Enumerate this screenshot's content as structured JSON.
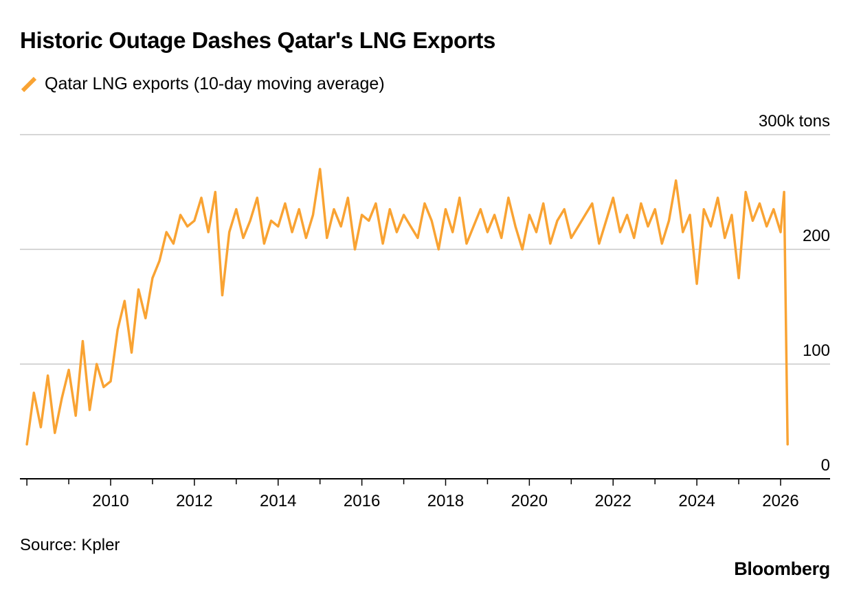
{
  "header": {
    "title": "Historic Outage Dashes Qatar's LNG Exports"
  },
  "footer": {
    "source": "Source: Kpler",
    "brand": "Bloomberg"
  },
  "colors": {
    "series": "#F9A333",
    "grid": "#C8C8C8",
    "axis": "#000000"
  },
  "chart_data": {
    "type": "line",
    "title": "Historic Outage Dashes Qatar's LNG Exports",
    "xlabel": "",
    "ylabel": "",
    "y_unit_label": "300k tons",
    "y_ticks": [
      0,
      100,
      200,
      300
    ],
    "y_tick_labels": [
      "0",
      "100",
      "200",
      "300k tons"
    ],
    "ylim": [
      0,
      300
    ],
    "x_range": [
      "2008-01",
      "2026-06"
    ],
    "x_tick_labels": [
      "2010",
      "2012",
      "2014",
      "2016",
      "2018",
      "2020",
      "2022",
      "2024",
      "2026"
    ],
    "grid": true,
    "legend_position": "top-left",
    "series": [
      {
        "name": "Qatar LNG exports (10-day moving average)",
        "color": "#F9A333",
        "x": [
          "2008-01",
          "2008-03",
          "2008-05",
          "2008-07",
          "2008-09",
          "2008-11",
          "2009-01",
          "2009-03",
          "2009-05",
          "2009-07",
          "2009-09",
          "2009-11",
          "2010-01",
          "2010-03",
          "2010-05",
          "2010-07",
          "2010-09",
          "2010-11",
          "2011-01",
          "2011-03",
          "2011-05",
          "2011-07",
          "2011-09",
          "2011-11",
          "2012-01",
          "2012-03",
          "2012-05",
          "2012-07",
          "2012-09",
          "2012-11",
          "2013-01",
          "2013-03",
          "2013-05",
          "2013-07",
          "2013-09",
          "2013-11",
          "2014-01",
          "2014-03",
          "2014-05",
          "2014-07",
          "2014-09",
          "2014-11",
          "2015-01",
          "2015-03",
          "2015-05",
          "2015-07",
          "2015-09",
          "2015-11",
          "2016-01",
          "2016-03",
          "2016-05",
          "2016-07",
          "2016-09",
          "2016-11",
          "2017-01",
          "2017-03",
          "2017-05",
          "2017-07",
          "2017-09",
          "2017-11",
          "2018-01",
          "2018-03",
          "2018-05",
          "2018-07",
          "2018-09",
          "2018-11",
          "2019-01",
          "2019-03",
          "2019-05",
          "2019-07",
          "2019-09",
          "2019-11",
          "2020-01",
          "2020-03",
          "2020-05",
          "2020-07",
          "2020-09",
          "2020-11",
          "2021-01",
          "2021-03",
          "2021-05",
          "2021-07",
          "2021-09",
          "2021-11",
          "2022-01",
          "2022-03",
          "2022-05",
          "2022-07",
          "2022-09",
          "2022-11",
          "2023-01",
          "2023-03",
          "2023-05",
          "2023-07",
          "2023-09",
          "2023-11",
          "2024-01",
          "2024-03",
          "2024-05",
          "2024-07",
          "2024-09",
          "2024-11",
          "2025-01",
          "2025-03",
          "2025-05",
          "2025-07",
          "2025-09",
          "2025-11",
          "2026-01",
          "2026-02",
          "2026-03"
        ],
        "values": [
          30,
          75,
          45,
          90,
          40,
          70,
          95,
          55,
          120,
          60,
          100,
          80,
          85,
          130,
          155,
          110,
          165,
          140,
          175,
          190,
          215,
          205,
          230,
          220,
          225,
          245,
          215,
          250,
          160,
          215,
          235,
          210,
          225,
          245,
          205,
          225,
          220,
          240,
          215,
          235,
          210,
          230,
          270,
          210,
          235,
          220,
          245,
          200,
          230,
          225,
          240,
          205,
          235,
          215,
          230,
          220,
          210,
          240,
          225,
          200,
          235,
          215,
          245,
          205,
          220,
          235,
          215,
          230,
          210,
          245,
          220,
          200,
          230,
          215,
          240,
          205,
          225,
          235,
          210,
          220,
          230,
          240,
          205,
          225,
          245,
          215,
          230,
          210,
          240,
          220,
          235,
          205,
          225,
          260,
          215,
          230,
          170,
          235,
          220,
          245,
          210,
          230,
          175,
          250,
          225,
          240,
          220,
          235,
          215,
          250,
          30
        ]
      }
    ]
  }
}
